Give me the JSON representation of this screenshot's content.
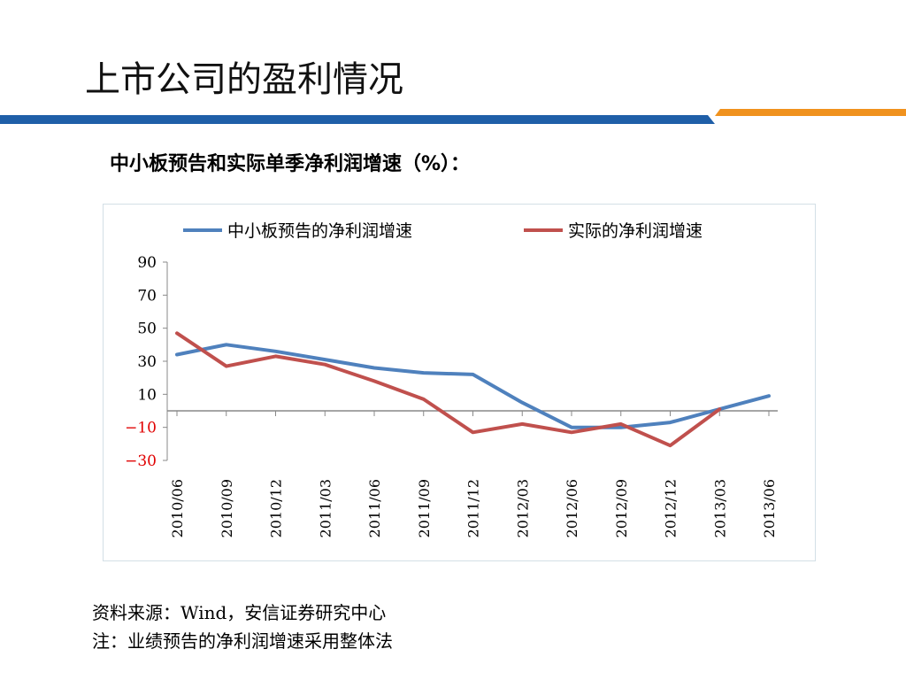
{
  "slide": {
    "title": "上市公司的盈利情况",
    "accent_colors": {
      "blue": "#1f5fa8",
      "orange": "#f0921e"
    }
  },
  "chart_heading": "中小板预告和实际单季净利润增速（%）：",
  "chart_data": {
    "type": "line",
    "title": "",
    "xlabel": "",
    "ylabel": "",
    "x": [
      "2010/06",
      "2010/09",
      "2010/12",
      "2011/03",
      "2011/06",
      "2011/09",
      "2011/12",
      "2012/03",
      "2012/06",
      "2012/09",
      "2012/12",
      "2013/03",
      "2013/06"
    ],
    "y_ticks": [
      "90",
      "70",
      "50",
      "30",
      "10",
      "−10",
      "−30"
    ],
    "y_tick_values": [
      90,
      70,
      50,
      30,
      10,
      -10,
      -30
    ],
    "ylim": [
      -30,
      90
    ],
    "negative_tick_color": "#e00000",
    "grid": false,
    "legend_position": "top",
    "series": [
      {
        "name": "中小板预告的净利润增速",
        "color": "#4f81bd",
        "values": [
          34,
          40,
          36,
          31,
          26,
          23,
          22,
          5,
          -10,
          -10,
          -7,
          1,
          9
        ]
      },
      {
        "name": "实际的净利润增速",
        "color": "#c0504d",
        "values": [
          47,
          27,
          33,
          28,
          18,
          7,
          -13,
          -8,
          -13,
          -8,
          -21,
          1,
          null
        ]
      }
    ]
  },
  "source_note": {
    "line1": "资料来源：Wind，安信证券研究中心",
    "line2": "注：业绩预告的净利润增速采用整体法"
  }
}
